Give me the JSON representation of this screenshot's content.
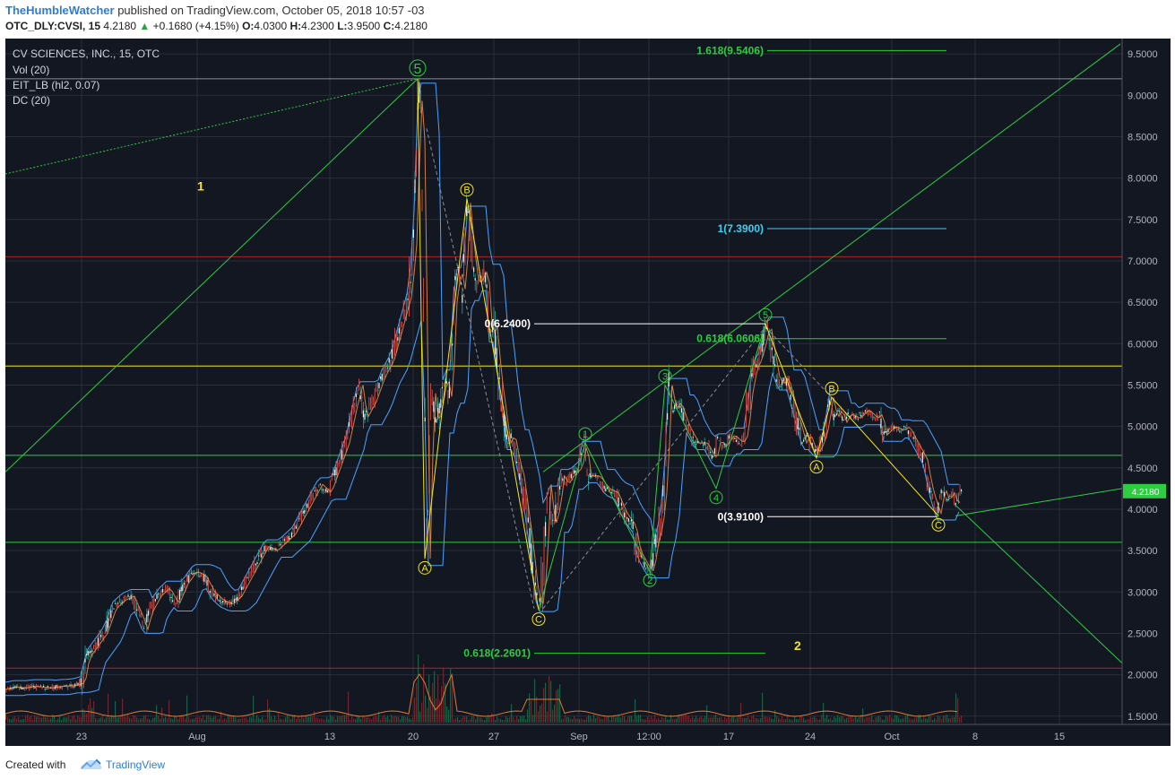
{
  "header": {
    "author": "TheHumbleWatcher",
    "published_text": " published on TradingView.com, October 05, 2018 10:57 -03",
    "symbol": "OTC_DLY:CVSI, 15",
    "last": "4.2180",
    "change_arrow": "▲",
    "change": "+0.1680 (+4.15%)",
    "o_label": "O:",
    "o": "4.0300",
    "h_label": "H:",
    "h": "4.2300",
    "l_label": "L:",
    "l": "3.9500",
    "c_label": "C:",
    "c": "4.2180"
  },
  "legend": {
    "title": "CV SCIENCES, INC., 15, OTC",
    "ind1": "Vol (20)",
    "ind2": "EIT_LB (hl2, 0.07)",
    "ind3": "DC (20)"
  },
  "footer": {
    "created_with": "Created with",
    "brand": "TradingView",
    "logo_icon": "tradingview-cloud-icon"
  },
  "colors": {
    "background": "#131722",
    "grid": "#2a2e39",
    "axis_text": "#b2b5be",
    "green": "#2ecc40",
    "yellow": "#f5e61a",
    "cyan": "#3ad1f0",
    "red": "#b32020",
    "white": "#ffffff",
    "channel": "#4aa3ff"
  },
  "chart_data": {
    "type": "candlestick",
    "title": "CV SCIENCES, INC., 15, OTC",
    "ylim": [
      1.4,
      9.65
    ],
    "y_ticks": [
      "9.5000",
      "9.0000",
      "8.5000",
      "8.0000",
      "7.5000",
      "7.0000",
      "6.5000",
      "6.0000",
      "5.5000",
      "5.0000",
      "4.5000",
      "4.0000",
      "3.5000",
      "3.0000",
      "2.5000",
      "2.0000",
      "1.5000"
    ],
    "x_ticks": [
      "23",
      "Aug",
      "13",
      "20",
      "27",
      "Sep",
      "12:00",
      "17",
      "24",
      "Oct",
      "8",
      "15"
    ],
    "last_price": "4.2180",
    "price_path": [
      [
        0,
        1.83
      ],
      [
        10,
        1.85
      ],
      [
        20,
        1.84
      ],
      [
        30,
        1.86
      ],
      [
        40,
        1.85
      ],
      [
        50,
        1.84
      ],
      [
        60,
        1.86
      ],
      [
        75,
        1.87
      ],
      [
        85,
        1.9
      ],
      [
        90,
        2.2
      ],
      [
        100,
        2.35
      ],
      [
        110,
        2.5
      ],
      [
        120,
        2.8
      ],
      [
        130,
        2.9
      ],
      [
        140,
        2.95
      ],
      [
        150,
        2.7
      ],
      [
        155,
        2.55
      ],
      [
        160,
        2.75
      ],
      [
        170,
        2.95
      ],
      [
        180,
        3.05
      ],
      [
        190,
        2.85
      ],
      [
        200,
        3.1
      ],
      [
        210,
        3.25
      ],
      [
        220,
        3.2
      ],
      [
        230,
        3.0
      ],
      [
        240,
        2.9
      ],
      [
        250,
        2.85
      ],
      [
        260,
        2.95
      ],
      [
        270,
        3.15
      ],
      [
        280,
        3.35
      ],
      [
        290,
        3.55
      ],
      [
        300,
        3.5
      ],
      [
        310,
        3.6
      ],
      [
        320,
        3.7
      ],
      [
        330,
        3.9
      ],
      [
        340,
        4.1
      ],
      [
        350,
        4.3
      ],
      [
        360,
        4.2
      ],
      [
        370,
        4.5
      ],
      [
        380,
        4.8
      ],
      [
        390,
        5.3
      ],
      [
        395,
        5.5
      ],
      [
        400,
        5.1
      ],
      [
        410,
        5.3
      ],
      [
        420,
        5.6
      ],
      [
        430,
        5.8
      ],
      [
        440,
        6.2
      ],
      [
        450,
        6.6
      ],
      [
        455,
        7.2
      ],
      [
        460,
        8.8
      ],
      [
        463,
        9.2
      ],
      [
        466,
        7.0
      ],
      [
        470,
        3.4
      ],
      [
        475,
        5.5
      ],
      [
        480,
        5.0
      ],
      [
        490,
        5.6
      ],
      [
        495,
        5.3
      ],
      [
        500,
        6.5
      ],
      [
        505,
        6.9
      ],
      [
        510,
        6.6
      ],
      [
        515,
        7.7
      ],
      [
        520,
        7.1
      ],
      [
        525,
        6.7
      ],
      [
        535,
        6.9
      ],
      [
        540,
        6.1
      ],
      [
        545,
        6.2
      ],
      [
        550,
        5.6
      ],
      [
        555,
        5.2
      ],
      [
        560,
        4.8
      ],
      [
        565,
        4.9
      ],
      [
        570,
        4.6
      ],
      [
        575,
        4.4
      ],
      [
        580,
        4.0
      ],
      [
        585,
        3.6
      ],
      [
        590,
        3.1
      ],
      [
        595,
        2.78
      ],
      [
        600,
        3.2
      ],
      [
        605,
        4.3
      ],
      [
        610,
        3.8
      ],
      [
        615,
        4.0
      ],
      [
        620,
        4.4
      ],
      [
        625,
        4.3
      ],
      [
        630,
        4.4
      ],
      [
        640,
        4.5
      ],
      [
        645,
        4.8
      ],
      [
        650,
        4.4
      ],
      [
        660,
        4.4
      ],
      [
        670,
        4.25
      ],
      [
        680,
        4.2
      ],
      [
        690,
        3.95
      ],
      [
        700,
        3.8
      ],
      [
        705,
        3.5
      ],
      [
        710,
        3.4
      ],
      [
        715,
        3.3
      ],
      [
        720,
        3.25
      ],
      [
        725,
        3.6
      ],
      [
        730,
        3.8
      ],
      [
        735,
        4.3
      ],
      [
        740,
        5.5
      ],
      [
        745,
        5.2
      ],
      [
        750,
        5.3
      ],
      [
        760,
        5.0
      ],
      [
        770,
        4.8
      ],
      [
        780,
        4.8
      ],
      [
        790,
        4.6
      ],
      [
        795,
        4.85
      ],
      [
        800,
        4.75
      ],
      [
        810,
        4.9
      ],
      [
        820,
        4.8
      ],
      [
        825,
        4.9
      ],
      [
        830,
        5.4
      ],
      [
        835,
        5.7
      ],
      [
        840,
        5.8
      ],
      [
        845,
        6.0
      ],
      [
        850,
        6.24
      ],
      [
        855,
        5.9
      ],
      [
        860,
        5.6
      ],
      [
        865,
        5.5
      ],
      [
        870,
        5.6
      ],
      [
        875,
        5.4
      ],
      [
        880,
        5.2
      ],
      [
        885,
        5.0
      ],
      [
        890,
        4.8
      ],
      [
        895,
        4.9
      ],
      [
        900,
        4.75
      ],
      [
        905,
        4.7
      ],
      [
        910,
        4.8
      ],
      [
        915,
        5.0
      ],
      [
        920,
        5.35
      ],
      [
        925,
        5.1
      ],
      [
        930,
        5.2
      ],
      [
        935,
        5.05
      ],
      [
        940,
        5.15
      ],
      [
        950,
        5.1
      ],
      [
        960,
        5.2
      ],
      [
        970,
        5.1
      ],
      [
        975,
        5.15
      ],
      [
        980,
        4.9
      ],
      [
        985,
        4.95
      ],
      [
        990,
        5.0
      ],
      [
        1000,
        4.95
      ],
      [
        1005,
        5.0
      ],
      [
        1010,
        4.9
      ],
      [
        1015,
        4.8
      ],
      [
        1020,
        4.7
      ],
      [
        1025,
        4.6
      ],
      [
        1030,
        4.3
      ],
      [
        1035,
        4.1
      ],
      [
        1040,
        3.95
      ],
      [
        1045,
        4.25
      ],
      [
        1050,
        4.1
      ],
      [
        1055,
        4.2
      ],
      [
        1060,
        4.05
      ],
      [
        1065,
        4.2
      ],
      [
        1068,
        4.218
      ]
    ],
    "elliott_primary": [
      {
        "label": "5",
        "x": 460,
        "y": 9.2,
        "color": "green",
        "size": "large"
      },
      {
        "label": "A",
        "x": 468,
        "y": 3.4,
        "color": "yellow"
      },
      {
        "label": "B",
        "x": 515,
        "y": 7.75,
        "color": "yellow"
      },
      {
        "label": "C",
        "x": 595,
        "y": 2.78,
        "color": "yellow"
      }
    ],
    "elliott_secondary": [
      {
        "label": "1",
        "x": 647,
        "y": 4.8,
        "color": "green"
      },
      {
        "label": "2",
        "x": 719,
        "y": 3.25,
        "color": "green"
      },
      {
        "label": "3",
        "x": 736,
        "y": 5.5,
        "color": "green"
      },
      {
        "label": "4",
        "x": 793,
        "y": 4.25,
        "color": "green"
      },
      {
        "label": "5",
        "x": 848,
        "y": 6.24,
        "color": "green"
      },
      {
        "label": "A",
        "x": 905,
        "y": 4.62,
        "color": "yellow"
      },
      {
        "label": "B",
        "x": 922,
        "y": 5.35,
        "color": "yellow"
      },
      {
        "label": "C",
        "x": 1041,
        "y": 3.92,
        "color": "yellow"
      }
    ],
    "fib_labels": [
      {
        "text": "1.618(9.5406)",
        "price": 9.5406,
        "color": "green",
        "x1": 850,
        "x2": 1050
      },
      {
        "text": "1(7.3900)",
        "price": 7.39,
        "color": "cyan",
        "x1": 850,
        "x2": 1050
      },
      {
        "text": "0(6.2400)",
        "price": 6.24,
        "color": "white",
        "x1": 590,
        "x2": 848
      },
      {
        "text": "0.618(6.0606)",
        "price": 6.0606,
        "color": "green",
        "x1": 850,
        "x2": 1050
      },
      {
        "text": "0(3.9100)",
        "price": 3.91,
        "color": "white",
        "x1": 850,
        "x2": 1040
      },
      {
        "text": "0.618(2.2601)",
        "price": 2.2601,
        "color": "green",
        "x1": 590,
        "x2": 848
      }
    ],
    "scenario_labels": [
      {
        "text": "1",
        "x": 214,
        "price": 7.85,
        "color": "yellow"
      },
      {
        "text": "2",
        "x": 880,
        "price": 2.3,
        "color": "yellow"
      }
    ],
    "horizontal_lines": [
      {
        "price": 9.2,
        "color": "grey"
      },
      {
        "price": 7.05,
        "color": "red"
      },
      {
        "price": 5.73,
        "color": "yellow"
      },
      {
        "price": 4.65,
        "color": "green"
      },
      {
        "price": 3.6,
        "color": "green"
      },
      {
        "price": 2.08,
        "color": "red"
      }
    ]
  }
}
